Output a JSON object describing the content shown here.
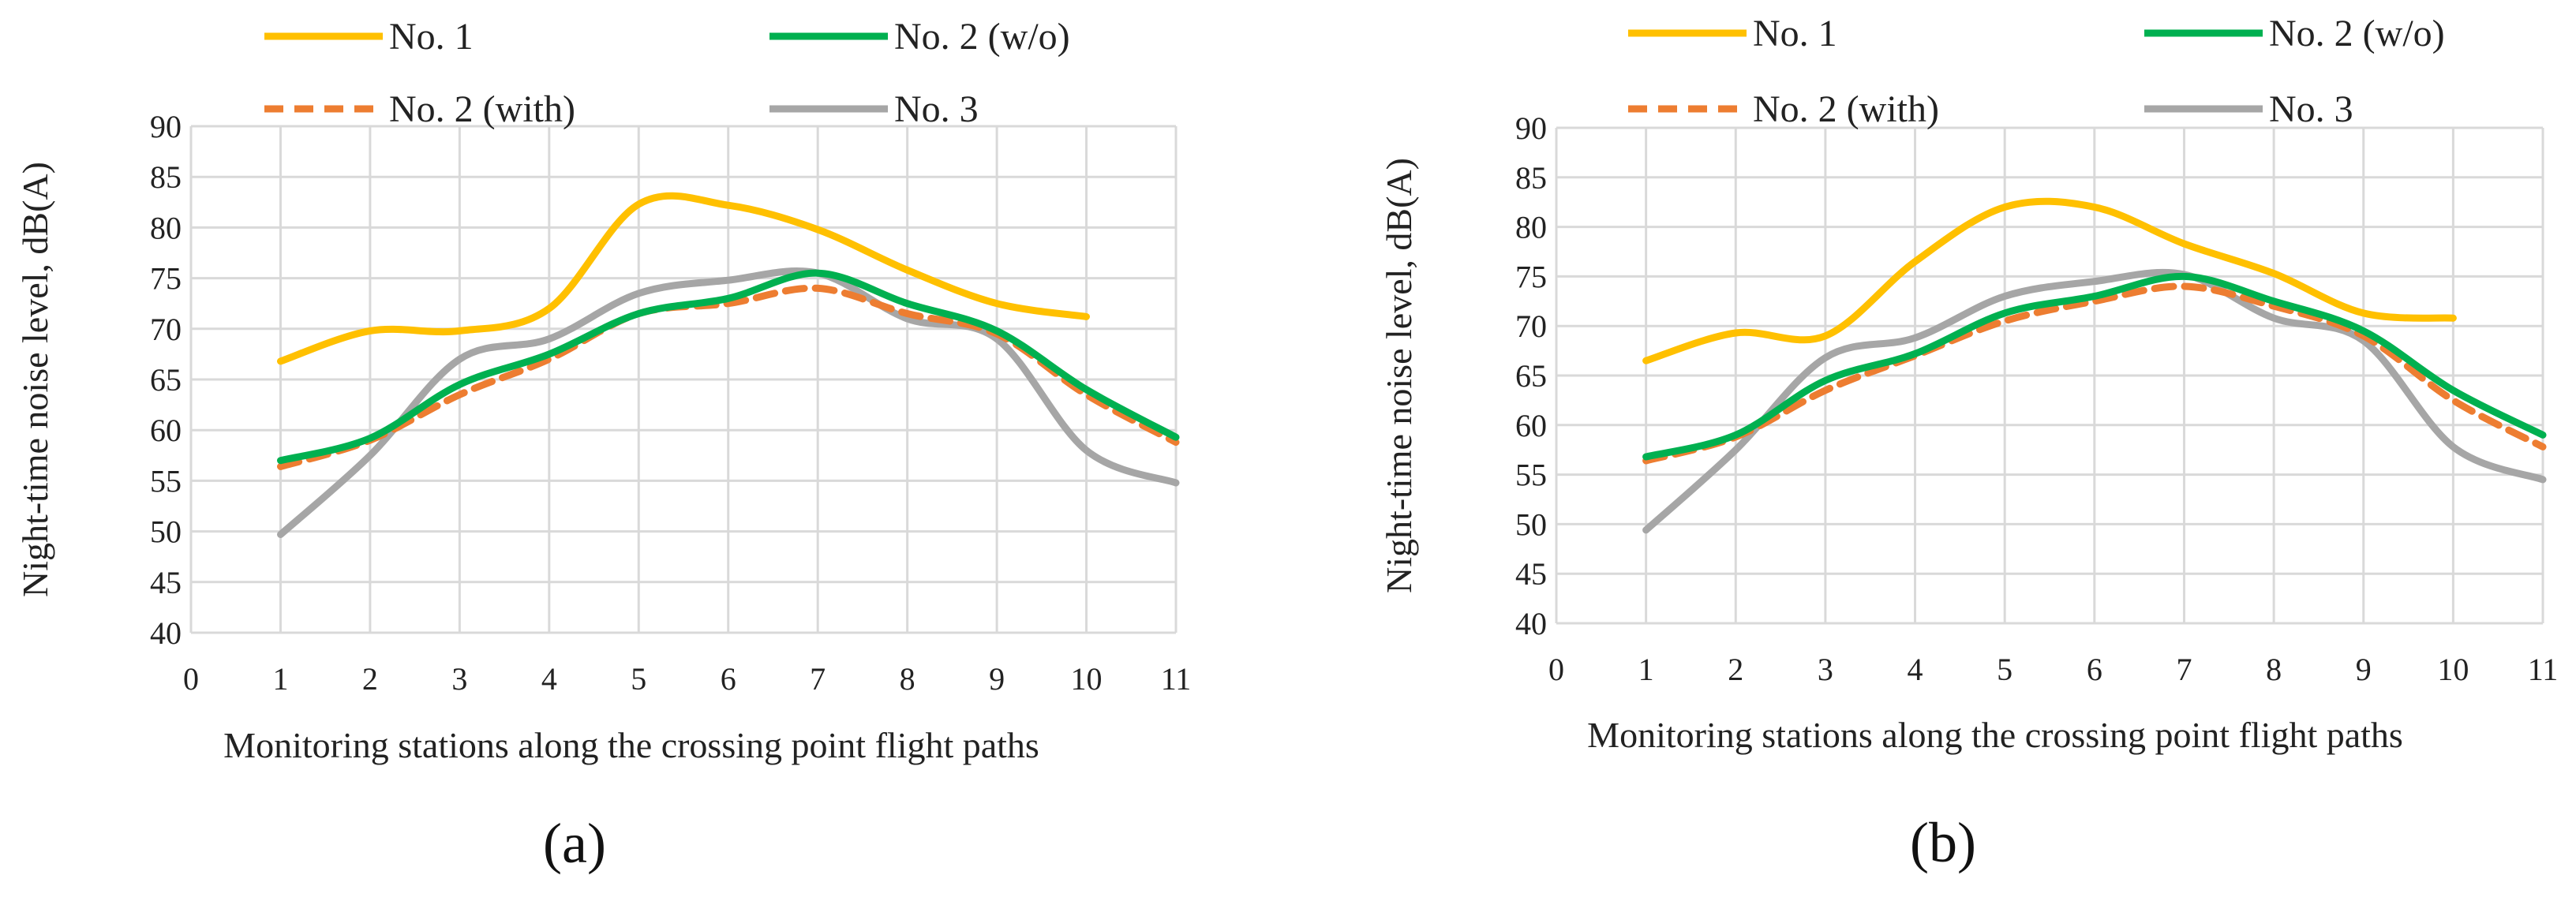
{
  "chart_data": [
    {
      "type": "line",
      "panel_label": "(a)",
      "title": "",
      "xlabel": "Monitoring stations along the crossing point flight paths",
      "ylabel": "Night-time noise level, dB(A)",
      "xlim": [
        0,
        11
      ],
      "ylim": [
        40,
        90
      ],
      "xticks": [
        0,
        1,
        2,
        3,
        4,
        5,
        6,
        7,
        8,
        9,
        10,
        11
      ],
      "yticks": [
        40,
        45,
        50,
        55,
        60,
        65,
        70,
        75,
        80,
        85,
        90
      ],
      "grid": true,
      "legend_position": "top",
      "series": [
        {
          "name": "No. 1",
          "color": "#FFC000",
          "dash": "solid",
          "x": [
            1,
            2,
            3,
            4,
            5,
            6,
            7,
            8,
            9,
            10
          ],
          "y": [
            66.8,
            69.8,
            69.8,
            72.0,
            82.3,
            82.2,
            79.8,
            75.8,
            72.5,
            71.2
          ]
        },
        {
          "name": "No. 2 (w/o)",
          "color": "#00B050",
          "dash": "solid",
          "x": [
            1,
            2,
            3,
            4,
            5,
            6,
            7,
            8,
            9,
            10,
            11
          ],
          "y": [
            57.0,
            59.2,
            64.5,
            67.5,
            71.5,
            73.0,
            75.5,
            72.5,
            69.8,
            64.0,
            59.3
          ]
        },
        {
          "name": "No. 2 (with)",
          "color": "#ED7D31",
          "dash": "dashed",
          "x": [
            1,
            2,
            3,
            4,
            5,
            6,
            7,
            8,
            9,
            10,
            11
          ],
          "y": [
            56.4,
            59.0,
            63.5,
            67.0,
            71.5,
            72.5,
            74.0,
            71.5,
            69.5,
            63.5,
            58.8
          ]
        },
        {
          "name": "No. 3",
          "color": "#A6A6A6",
          "dash": "solid",
          "x": [
            1,
            2,
            3,
            4,
            5,
            6,
            7,
            8,
            9,
            10,
            11
          ],
          "y": [
            49.7,
            57.5,
            67.0,
            69.0,
            73.5,
            74.8,
            75.5,
            71.0,
            69.0,
            58.0,
            54.8
          ]
        }
      ]
    },
    {
      "type": "line",
      "panel_label": "(b)",
      "title": "",
      "xlabel": "Monitoring stations along the crossing point flight paths",
      "ylabel": "Night-time noise level, dB(A)",
      "xlim": [
        0,
        11
      ],
      "ylim": [
        40,
        90
      ],
      "xticks": [
        0,
        1,
        2,
        3,
        4,
        5,
        6,
        7,
        8,
        9,
        10,
        11
      ],
      "yticks": [
        40,
        45,
        50,
        55,
        60,
        65,
        70,
        75,
        80,
        85,
        90
      ],
      "grid": true,
      "legend_position": "top",
      "series": [
        {
          "name": "No. 1",
          "color": "#FFC000",
          "dash": "solid",
          "x": [
            1,
            2,
            3,
            4,
            5,
            6,
            7,
            8,
            9,
            10
          ],
          "y": [
            66.5,
            69.3,
            69.0,
            76.5,
            82.0,
            82.0,
            78.3,
            75.3,
            71.3,
            70.8
          ]
        },
        {
          "name": "No. 2 (w/o)",
          "color": "#00B050",
          "dash": "solid",
          "x": [
            1,
            2,
            3,
            4,
            5,
            6,
            7,
            8,
            9,
            10,
            11
          ],
          "y": [
            56.8,
            59.0,
            64.5,
            67.2,
            71.3,
            73.0,
            75.0,
            72.5,
            69.5,
            63.5,
            59.0
          ]
        },
        {
          "name": "No. 2 (with)",
          "color": "#ED7D31",
          "dash": "dashed",
          "x": [
            1,
            2,
            3,
            4,
            5,
            6,
            7,
            8,
            9,
            10,
            11
          ],
          "y": [
            56.4,
            58.8,
            63.5,
            67.0,
            70.5,
            72.5,
            74.0,
            72.0,
            69.0,
            62.5,
            57.8
          ]
        },
        {
          "name": "No. 3",
          "color": "#A6A6A6",
          "dash": "solid",
          "x": [
            1,
            2,
            3,
            4,
            5,
            6,
            7,
            8,
            9,
            10,
            11
          ],
          "y": [
            49.4,
            57.5,
            66.8,
            68.8,
            73.0,
            74.5,
            75.2,
            70.8,
            68.5,
            57.8,
            54.5
          ]
        }
      ]
    }
  ]
}
